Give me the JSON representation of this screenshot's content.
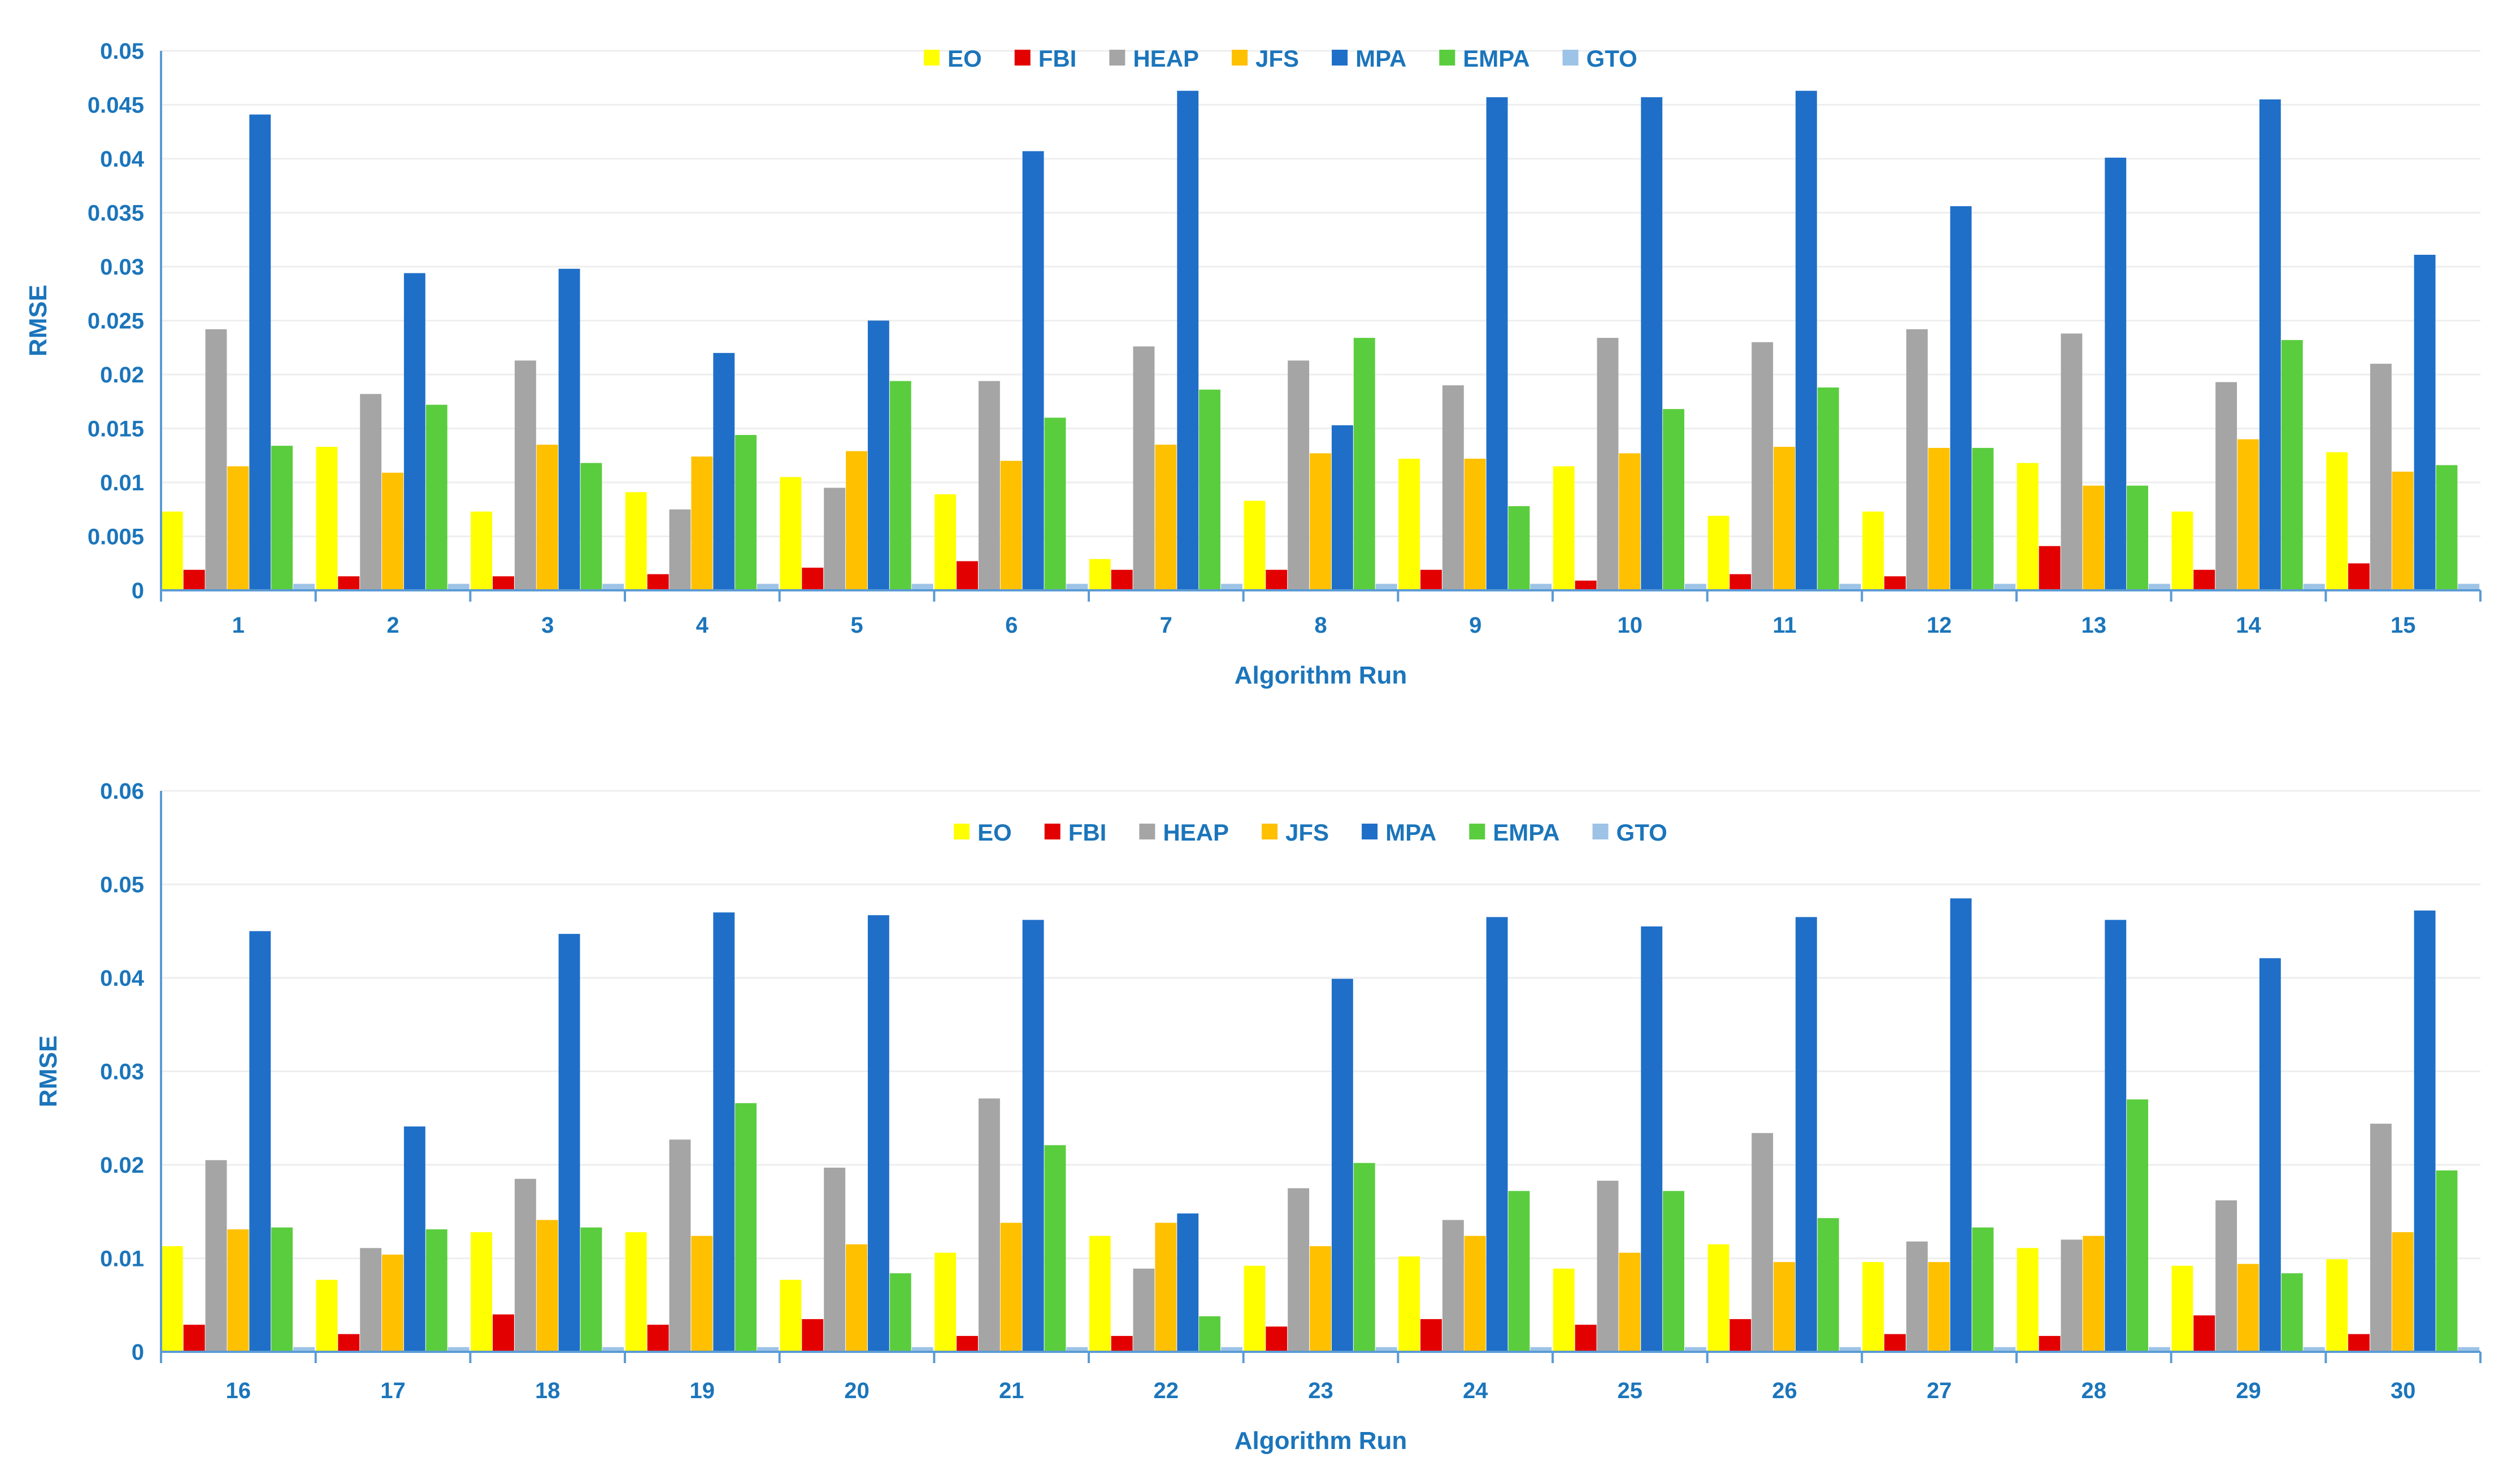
{
  "text_color": "#1B75BB",
  "axis_color": "#5B9BD5",
  "grid_color": "#EEEEEE",
  "series_meta": [
    {
      "name": "EO",
      "color": "#FFFF00"
    },
    {
      "name": "FBI",
      "color": "#E30000"
    },
    {
      "name": "HEAP",
      "color": "#A5A5A5"
    },
    {
      "name": "JFS",
      "color": "#FFC000"
    },
    {
      "name": "MPA",
      "color": "#1F6FC8"
    },
    {
      "name": "EMPA",
      "color": "#5ACD3E"
    },
    {
      "name": "GTO",
      "color": "#9DC3E6"
    }
  ],
  "chart_data": [
    {
      "type": "bar",
      "title": "",
      "xlabel": "Algorithm Run",
      "ylabel": "RMSE",
      "ylim": [
        0,
        0.05
      ],
      "yticks": [
        "0",
        "0.005",
        "0.01",
        "0.015",
        "0.02",
        "0.025",
        "0.03",
        "0.035",
        "0.04",
        "0.045",
        "0.05"
      ],
      "ytick_values": [
        0,
        0.005,
        0.01,
        0.015,
        0.02,
        0.025,
        0.03,
        0.035,
        0.04,
        0.045,
        0.05
      ],
      "legend_position": "top-center",
      "grid": true,
      "categories": [
        "1",
        "2",
        "3",
        "4",
        "5",
        "6",
        "7",
        "8",
        "9",
        "10",
        "11",
        "12",
        "13",
        "14",
        "15"
      ],
      "series": [
        {
          "name": "EO",
          "values": [
            0.0073,
            0.0133,
            0.0073,
            0.0091,
            0.0105,
            0.0089,
            0.0029,
            0.0083,
            0.0122,
            0.0115,
            0.0069,
            0.0073,
            0.0118,
            0.0073,
            0.0128
          ]
        },
        {
          "name": "FBI",
          "values": [
            0.0019,
            0.0013,
            0.0013,
            0.0015,
            0.0021,
            0.0027,
            0.0019,
            0.0019,
            0.0019,
            0.0009,
            0.0015,
            0.0013,
            0.0041,
            0.0019,
            0.0025
          ]
        },
        {
          "name": "HEAP",
          "values": [
            0.0242,
            0.0182,
            0.0213,
            0.0075,
            0.0095,
            0.0194,
            0.0226,
            0.0213,
            0.019,
            0.0234,
            0.023,
            0.0242,
            0.0238,
            0.0193,
            0.021
          ]
        },
        {
          "name": "JFS",
          "values": [
            0.0115,
            0.0109,
            0.0135,
            0.0124,
            0.0129,
            0.012,
            0.0135,
            0.0127,
            0.0122,
            0.0127,
            0.0133,
            0.0132,
            0.0097,
            0.014,
            0.011
          ]
        },
        {
          "name": "MPA",
          "values": [
            0.0441,
            0.0294,
            0.0298,
            0.022,
            0.025,
            0.0407,
            0.0463,
            0.0153,
            0.0457,
            0.0457,
            0.0463,
            0.0356,
            0.0401,
            0.0455,
            0.0311
          ]
        },
        {
          "name": "EMPA",
          "values": [
            0.0134,
            0.0172,
            0.0118,
            0.0144,
            0.0194,
            0.016,
            0.0186,
            0.0234,
            0.0078,
            0.0168,
            0.0188,
            0.0132,
            0.0097,
            0.0232,
            0.0116
          ]
        },
        {
          "name": "GTO",
          "values": [
            0.0006,
            0.0006,
            0.0006,
            0.0006,
            0.0006,
            0.0006,
            0.0006,
            0.0006,
            0.0006,
            0.0006,
            0.0006,
            0.0006,
            0.0006,
            0.0006,
            0.0006
          ]
        }
      ]
    },
    {
      "type": "bar",
      "title": "",
      "xlabel": "Algorithm Run",
      "ylabel": "RMSE",
      "ylim": [
        0,
        0.06
      ],
      "yticks": [
        "0",
        "0.01",
        "0.02",
        "0.03",
        "0.04",
        "0.05",
        "0.06"
      ],
      "ytick_values": [
        0,
        0.01,
        0.02,
        0.03,
        0.04,
        0.05,
        0.06
      ],
      "legend_position": "top-center",
      "grid": true,
      "categories": [
        "16",
        "17",
        "18",
        "19",
        "20",
        "21",
        "22",
        "23",
        "24",
        "25",
        "26",
        "27",
        "28",
        "29",
        "30"
      ],
      "series": [
        {
          "name": "EO",
          "values": [
            0.0113,
            0.0077,
            0.0128,
            0.0128,
            0.0077,
            0.0106,
            0.0124,
            0.0092,
            0.0102,
            0.0089,
            0.0115,
            0.0096,
            0.0111,
            0.0092,
            0.0099
          ]
        },
        {
          "name": "FBI",
          "values": [
            0.0029,
            0.0019,
            0.004,
            0.0029,
            0.0035,
            0.0017,
            0.0017,
            0.0027,
            0.0035,
            0.0029,
            0.0035,
            0.0019,
            0.0017,
            0.0039,
            0.0019
          ]
        },
        {
          "name": "HEAP",
          "values": [
            0.0205,
            0.0111,
            0.0185,
            0.0227,
            0.0197,
            0.0271,
            0.0089,
            0.0175,
            0.0141,
            0.0183,
            0.0234,
            0.0118,
            0.012,
            0.0162,
            0.0244
          ]
        },
        {
          "name": "JFS",
          "values": [
            0.0131,
            0.0104,
            0.0141,
            0.0124,
            0.0115,
            0.0138,
            0.0138,
            0.0113,
            0.0124,
            0.0106,
            0.0096,
            0.0096,
            0.0124,
            0.0094,
            0.0128
          ]
        },
        {
          "name": "MPA",
          "values": [
            0.045,
            0.0241,
            0.0447,
            0.047,
            0.0467,
            0.0462,
            0.0148,
            0.0399,
            0.0465,
            0.0455,
            0.0465,
            0.0485,
            0.0462,
            0.0421,
            0.0472
          ]
        },
        {
          "name": "EMPA",
          "values": [
            0.0133,
            0.0131,
            0.0133,
            0.0266,
            0.0084,
            0.0221,
            0.0038,
            0.0202,
            0.0172,
            0.0172,
            0.0143,
            0.0133,
            0.027,
            0.0084,
            0.0194
          ]
        },
        {
          "name": "GTO",
          "values": [
            0.0005,
            0.0005,
            0.0005,
            0.0005,
            0.0005,
            0.0005,
            0.0005,
            0.0005,
            0.0005,
            0.0005,
            0.0005,
            0.0005,
            0.0005,
            0.0005,
            0.0005
          ]
        }
      ]
    }
  ]
}
